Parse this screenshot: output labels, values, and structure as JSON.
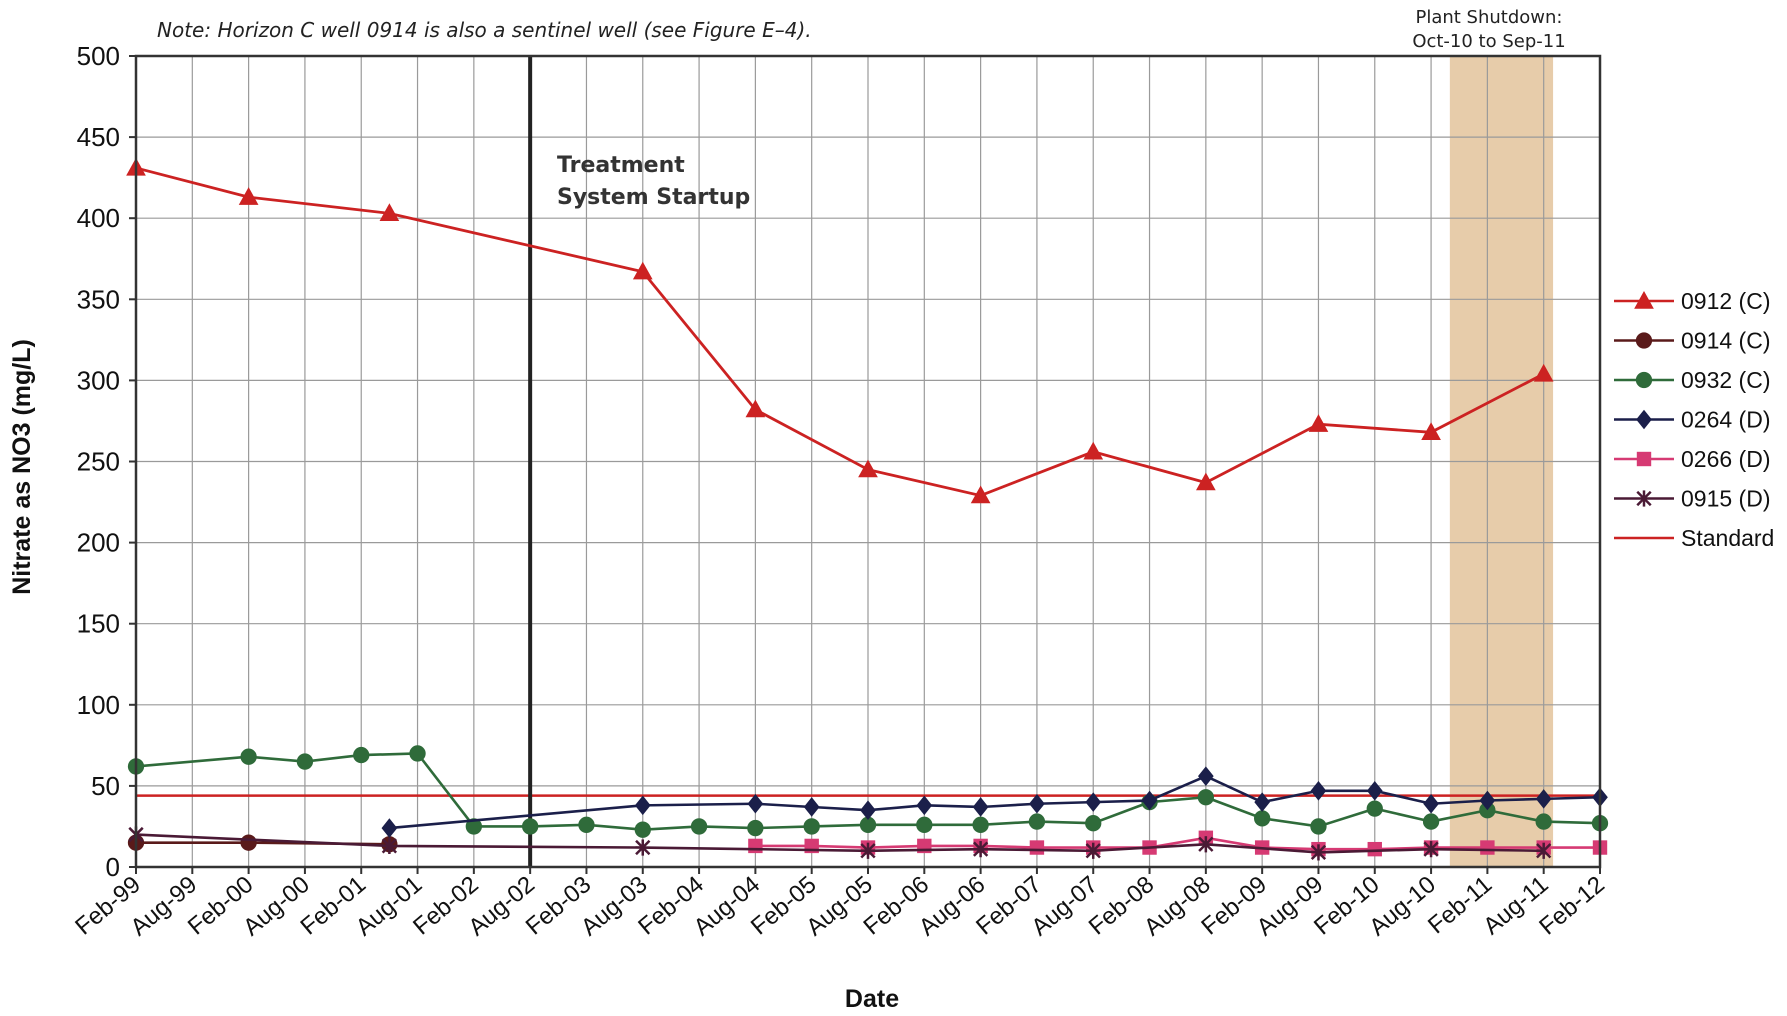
{
  "chart_data": {
    "type": "line",
    "xlabel": "Date",
    "ylabel": "Nitrate as NO3 (mg/L)",
    "ylim": [
      0,
      500
    ],
    "yticks": [
      0,
      50,
      100,
      150,
      200,
      250,
      300,
      350,
      400,
      450,
      500
    ],
    "xlim": [
      "1999-02",
      "2012-02"
    ],
    "x_tick_labels": [
      "Feb-99",
      "Aug-99",
      "Feb-00",
      "Aug-00",
      "Feb-01",
      "Aug-01",
      "Feb-02",
      "Aug-02",
      "Feb-03",
      "Aug-03",
      "Feb-04",
      "Aug-04",
      "Feb-05",
      "Aug-05",
      "Feb-06",
      "Aug-06",
      "Feb-07",
      "Aug-07",
      "Feb-08",
      "Aug-08",
      "Feb-09",
      "Aug-09",
      "Feb-10",
      "Aug-10",
      "Feb-11",
      "Aug-11",
      "Feb-12"
    ],
    "grid": true,
    "legend_position": "right",
    "note": "Note: Horizon C well 0914 is also a sentinel well (see Figure E–4).",
    "annotations": {
      "startup": {
        "date": "2002-08",
        "line1": "Treatment",
        "line2": "System Startup"
      },
      "shutdown": {
        "start": "2010-10",
        "end": "2011-09",
        "line1": "Plant Shutdown:",
        "line2": "Oct-10 to Sep-11",
        "color": "#e3c39b"
      }
    },
    "standard": {
      "name": "Standard",
      "value": 44,
      "color": "#cc2222"
    },
    "series": [
      {
        "name": "0912 (C)",
        "color": "#cc2222",
        "marker": "triangle",
        "points": [
          [
            "1999-02",
            431
          ],
          [
            "2000-02",
            413
          ],
          [
            "2001-05",
            403
          ],
          [
            "2003-08",
            367
          ],
          [
            "2004-08",
            282
          ],
          [
            "2005-08",
            245
          ],
          [
            "2006-08",
            229
          ],
          [
            "2007-08",
            256
          ],
          [
            "2008-08",
            237
          ],
          [
            "2009-08",
            273
          ],
          [
            "2010-08",
            268
          ],
          [
            "2011-08",
            304
          ]
        ]
      },
      {
        "name": "0914 (C)",
        "color": "#5a1a1a",
        "marker": "circle",
        "points": [
          [
            "1999-02",
            15
          ],
          [
            "2000-02",
            15
          ],
          [
            "2001-05",
            14
          ]
        ]
      },
      {
        "name": "0932 (C)",
        "color": "#2f6b3a",
        "marker": "circle",
        "points": [
          [
            "1999-02",
            62
          ],
          [
            "2000-02",
            68
          ],
          [
            "2000-08",
            65
          ],
          [
            "2001-02",
            69
          ],
          [
            "2001-08",
            70
          ],
          [
            "2002-02",
            25
          ],
          [
            "2002-08",
            25
          ],
          [
            "2003-02",
            26
          ],
          [
            "2003-08",
            23
          ],
          [
            "2004-02",
            25
          ],
          [
            "2004-08",
            24
          ],
          [
            "2005-02",
            25
          ],
          [
            "2005-08",
            26
          ],
          [
            "2006-02",
            26
          ],
          [
            "2006-08",
            26
          ],
          [
            "2007-02",
            28
          ],
          [
            "2007-08",
            27
          ],
          [
            "2008-02",
            40
          ],
          [
            "2008-08",
            43
          ],
          [
            "2009-02",
            30
          ],
          [
            "2009-08",
            25
          ],
          [
            "2010-02",
            36
          ],
          [
            "2010-08",
            28
          ],
          [
            "2011-02",
            35
          ],
          [
            "2011-08",
            28
          ],
          [
            "2012-02",
            27
          ]
        ]
      },
      {
        "name": "0264 (D)",
        "color": "#1b1f4a",
        "marker": "diamond",
        "points": [
          [
            "2001-05",
            24
          ],
          [
            "2003-08",
            38
          ],
          [
            "2004-08",
            39
          ],
          [
            "2005-02",
            37
          ],
          [
            "2005-08",
            35
          ],
          [
            "2006-02",
            38
          ],
          [
            "2006-08",
            37
          ],
          [
            "2007-02",
            39
          ],
          [
            "2007-08",
            40
          ],
          [
            "2008-02",
            41
          ],
          [
            "2008-08",
            56
          ],
          [
            "2009-02",
            40
          ],
          [
            "2009-08",
            47
          ],
          [
            "2010-02",
            47
          ],
          [
            "2010-08",
            39
          ],
          [
            "2011-02",
            41
          ],
          [
            "2011-08",
            42
          ],
          [
            "2012-02",
            43
          ]
        ]
      },
      {
        "name": "0266 (D)",
        "color": "#d63a73",
        "marker": "square",
        "points": [
          [
            "2004-08",
            13
          ],
          [
            "2005-02",
            13
          ],
          [
            "2005-08",
            12
          ],
          [
            "2006-02",
            13
          ],
          [
            "2006-08",
            13
          ],
          [
            "2007-02",
            12
          ],
          [
            "2007-08",
            12
          ],
          [
            "2008-02",
            12
          ],
          [
            "2008-08",
            18
          ],
          [
            "2009-02",
            12
          ],
          [
            "2009-08",
            11
          ],
          [
            "2010-02",
            11
          ],
          [
            "2010-08",
            12
          ],
          [
            "2011-02",
            12
          ],
          [
            "2011-08",
            12
          ],
          [
            "2012-02",
            12
          ]
        ]
      },
      {
        "name": "0915 (D)",
        "color": "#4a1a35",
        "marker": "x",
        "points": [
          [
            "1999-02",
            20
          ],
          [
            "2001-05",
            13
          ],
          [
            "2003-08",
            12
          ],
          [
            "2005-08",
            10
          ],
          [
            "2006-08",
            11
          ],
          [
            "2007-08",
            10
          ],
          [
            "2008-08",
            14
          ],
          [
            "2009-08",
            9
          ],
          [
            "2010-08",
            11
          ],
          [
            "2011-08",
            10
          ]
        ]
      }
    ]
  }
}
